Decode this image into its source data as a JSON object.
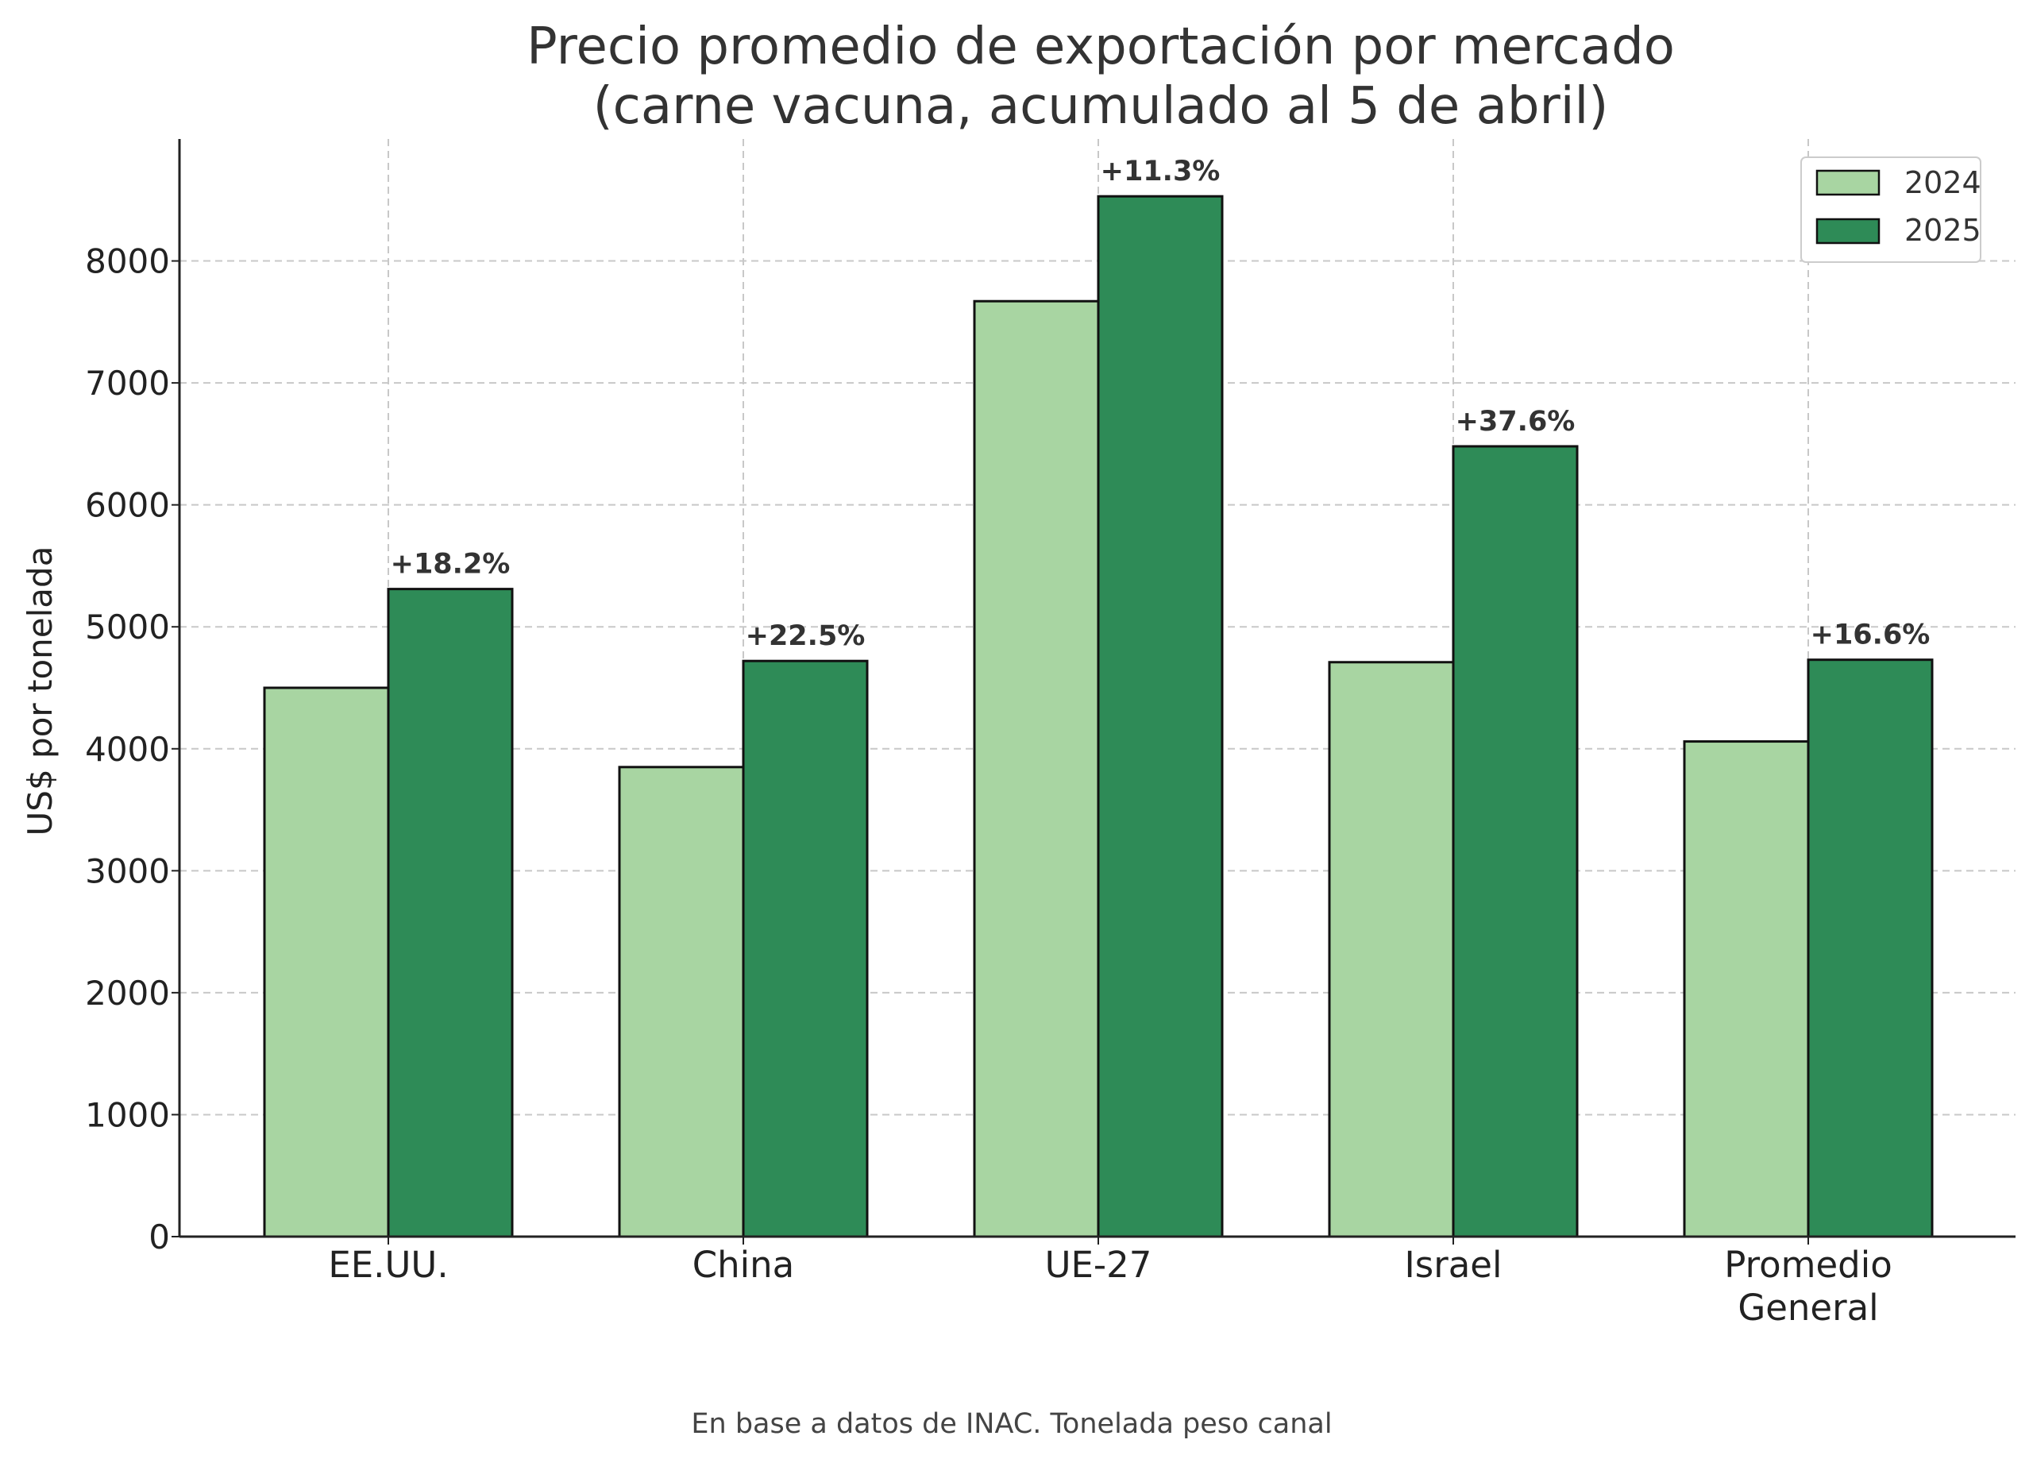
{
  "chart_data": {
    "type": "bar",
    "title_line1": "Precio promedio de exportación por mercado",
    "title_line2": "(carne vacuna, acumulado al 5 de abril)",
    "xlabel": "",
    "ylabel": "US$ por tonelada",
    "ylim": [
      0,
      9000
    ],
    "yticks": [
      0,
      1000,
      2000,
      3000,
      4000,
      5000,
      6000,
      7000,
      8000
    ],
    "categories": [
      "EE.UU.",
      "China",
      "UE-27",
      "Israel",
      "Promedio General"
    ],
    "category_lines": [
      [
        "EE.UU."
      ],
      [
        "China"
      ],
      [
        "UE-27"
      ],
      [
        "Israel"
      ],
      [
        "Promedio",
        "General"
      ]
    ],
    "series": [
      {
        "name": "2024",
        "values": [
          4500,
          3850,
          7670,
          4710,
          4060
        ],
        "color": "#a8d5a2"
      },
      {
        "name": "2025",
        "values": [
          5310,
          4720,
          8530,
          6480,
          4730
        ],
        "color": "#2e8b57"
      }
    ],
    "data_labels": [
      "+18.2%",
      "+22.5%",
      "+11.3%",
      "+37.6%",
      "+16.6%"
    ],
    "grid": true,
    "legend_placement": "top-right",
    "source_note": "En base a datos de INAC. Tonelada peso canal"
  }
}
